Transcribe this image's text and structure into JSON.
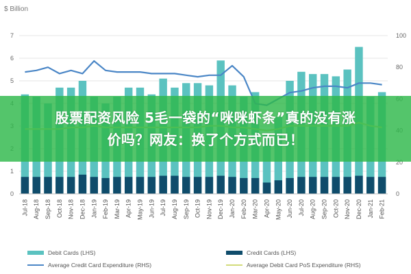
{
  "banner": {
    "line1": "股票配资风险 5毛一袋的“咪咪虾条”真的没有涨",
    "line2": "价吗？网友：换了个方式而已！"
  },
  "chart_data": {
    "type": "bar",
    "y_unit": "$ Billion",
    "categories": [
      "Jul-18",
      "Aug-18",
      "Sep-18",
      "Oct-18",
      "Nov-18",
      "Dec-18",
      "Jan-19",
      "Feb-19",
      "Mar-19",
      "Apr-19",
      "May-19",
      "Jun-19",
      "Jul-19",
      "Aug-19",
      "Sep-19",
      "Oct-19",
      "Nov-19",
      "Dec-19",
      "Jan-20",
      "Feb-20",
      "Mar-20",
      "Apr-20",
      "May-20",
      "Jun-20",
      "Jul-20",
      "Aug-20",
      "Sep-20",
      "Oct-20",
      "Nov-20",
      "Dec-20",
      "Jan-21",
      "Feb-21"
    ],
    "ylim": [
      0,
      7
    ],
    "y2lim": [
      0,
      100
    ],
    "yticks": [
      0,
      1,
      2,
      3,
      4,
      5,
      6,
      7
    ],
    "y2ticks": [
      0,
      20,
      40,
      60,
      80,
      100
    ],
    "grid": true,
    "legend_position": "bottom",
    "series": [
      {
        "name": "Debit Cards (LHS)",
        "kind": "bar",
        "axis": "left",
        "color": "#5bc2c0",
        "values": [
          4.4,
          4.3,
          4.0,
          4.7,
          4.7,
          5.0,
          4.3,
          4.0,
          4.3,
          4.7,
          4.7,
          4.4,
          5.1,
          4.7,
          4.9,
          4.9,
          4.8,
          5.9,
          4.8,
          4.3,
          4.5,
          2.6,
          3.4,
          5.0,
          5.4,
          5.3,
          5.3,
          5.2,
          5.5,
          6.5,
          4.3,
          4.5
        ]
      },
      {
        "name": "Credit Cards (LHS)",
        "kind": "bar",
        "axis": "left",
        "color": "#0f4c6b",
        "values": [
          0.75,
          0.75,
          0.75,
          0.75,
          0.75,
          0.85,
          0.75,
          0.7,
          0.75,
          0.75,
          0.75,
          0.75,
          0.8,
          0.8,
          0.75,
          0.75,
          0.75,
          0.8,
          0.75,
          0.7,
          0.7,
          0.5,
          0.6,
          0.7,
          0.75,
          0.75,
          0.75,
          0.75,
          0.75,
          0.8,
          0.75,
          0.75
        ]
      },
      {
        "name": "Average Credit Card Expenditure (RHS)",
        "kind": "line",
        "axis": "right",
        "color": "#4a86c6",
        "values": [
          77,
          78,
          80,
          76,
          78,
          76,
          84,
          78,
          77,
          77,
          77,
          76,
          76,
          76,
          75,
          74,
          75,
          75,
          81,
          74,
          57,
          56,
          60,
          64,
          65,
          67,
          68,
          68,
          67,
          70,
          70,
          69
        ]
      },
      {
        "name": "Average Debit Card PoS Expenditure (RHS)",
        "kind": "line",
        "axis": "right",
        "color": "#d2dc7a",
        "values": [
          41,
          41,
          41,
          41,
          42,
          42,
          43,
          42,
          42,
          42,
          42,
          42,
          42,
          42,
          42,
          42,
          43,
          43,
          42,
          42,
          41,
          40,
          41,
          43,
          43,
          43,
          43,
          43,
          43,
          45,
          43,
          42
        ]
      }
    ]
  }
}
